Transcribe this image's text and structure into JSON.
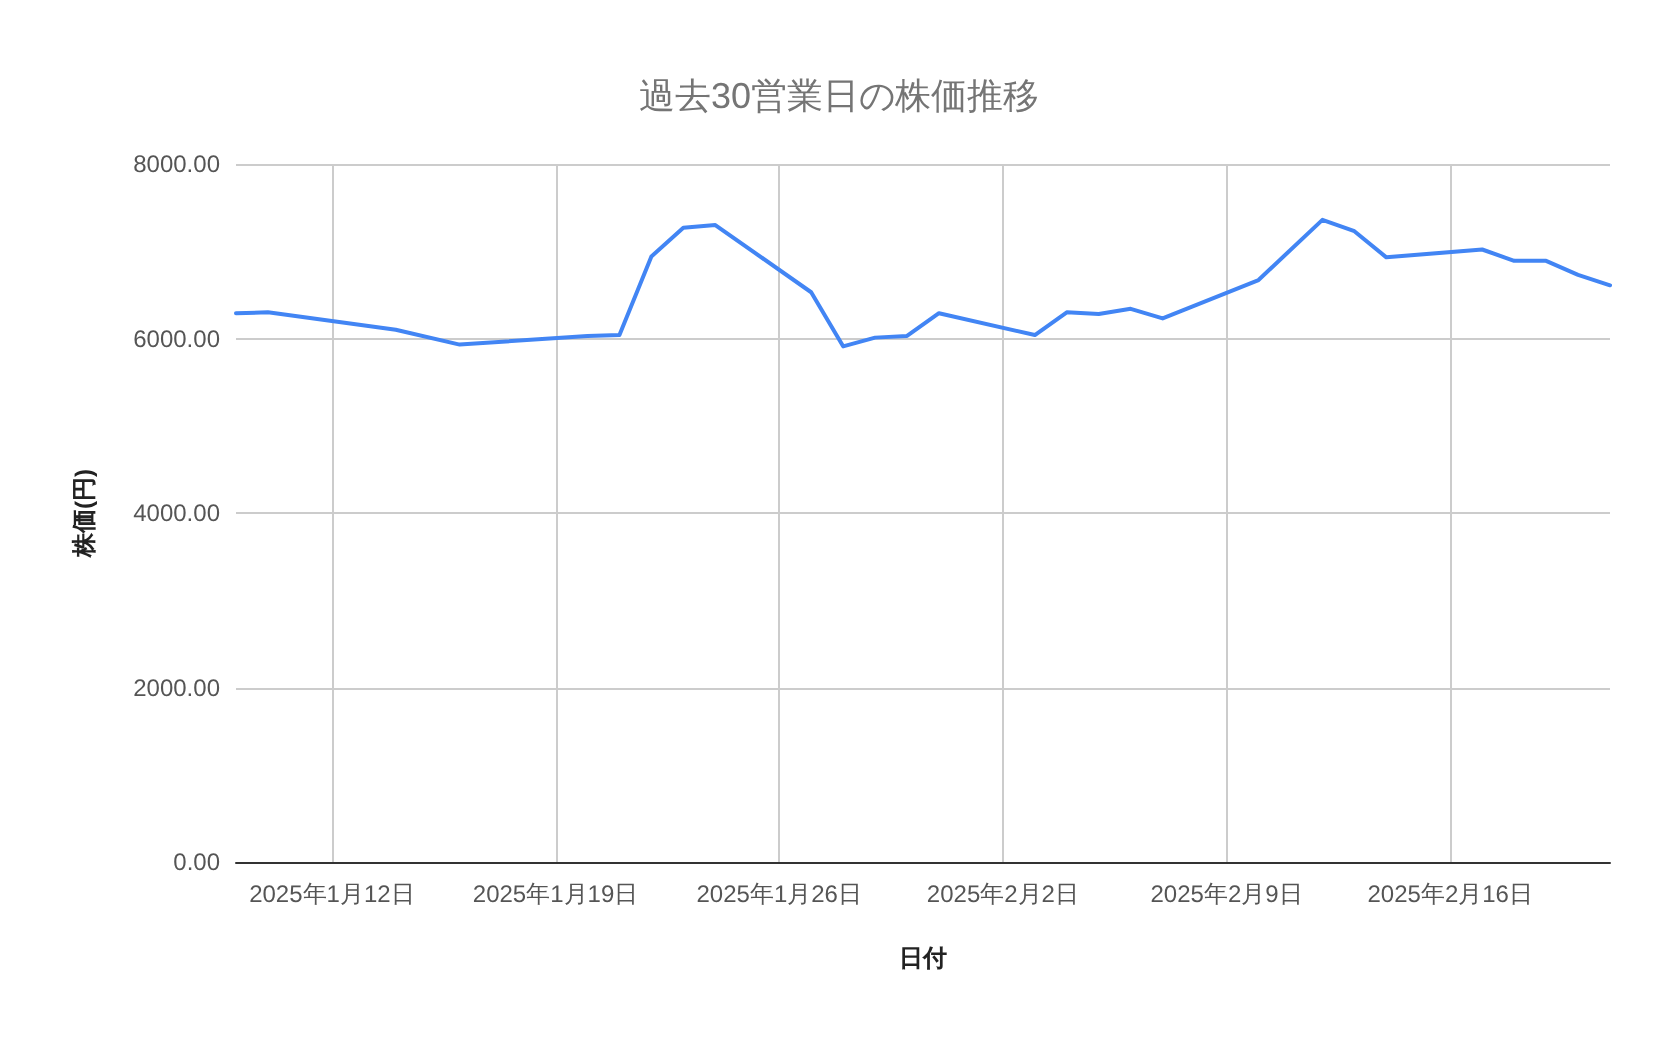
{
  "chart_data": {
    "type": "line",
    "title": "過去30営業日の株価推移",
    "xlabel": "日付",
    "ylabel": "株価(円)",
    "x": [
      "2025-01-09",
      "2025-01-10",
      "2025-01-14",
      "2025-01-16",
      "2025-01-20",
      "2025-01-21",
      "2025-01-22",
      "2025-01-23",
      "2025-01-24",
      "2025-01-27",
      "2025-01-28",
      "2025-01-29",
      "2025-01-30",
      "2025-01-31",
      "2025-02-03",
      "2025-02-04",
      "2025-02-05",
      "2025-02-06",
      "2025-02-07",
      "2025-02-10",
      "2025-02-12",
      "2025-02-13",
      "2025-02-14",
      "2025-02-17",
      "2025-02-18",
      "2025-02-19",
      "2025-02-20",
      "2025-02-21"
    ],
    "series": [
      {
        "color": "#4285f4",
        "values": [
          6290,
          6300,
          6100,
          5930,
          6030,
          6040,
          6940,
          7270,
          7300,
          6530,
          5910,
          6010,
          6030,
          6290,
          6040,
          6300,
          6280,
          6340,
          6230,
          6670,
          7360,
          7230,
          6930,
          7020,
          6890,
          6890,
          6730,
          6610
        ]
      }
    ],
    "xlim": [
      "2025-01-09",
      "2025-02-21"
    ],
    "xticks": [
      {
        "value": "2025-01-12",
        "label": "2025年1月12日"
      },
      {
        "value": "2025-01-19",
        "label": "2025年1月19日"
      },
      {
        "value": "2025-01-26",
        "label": "2025年1月26日"
      },
      {
        "value": "2025-02-02",
        "label": "2025年2月2日"
      },
      {
        "value": "2025-02-09",
        "label": "2025年2月9日"
      },
      {
        "value": "2025-02-16",
        "label": "2025年2月16日"
      }
    ],
    "ylim": [
      0,
      8000
    ],
    "yticks": [
      {
        "value": 0,
        "label": "0.00"
      },
      {
        "value": 2000,
        "label": "2000.00"
      },
      {
        "value": 4000,
        "label": "4000.00"
      },
      {
        "value": 6000,
        "label": "6000.00"
      },
      {
        "value": 8000,
        "label": "8000.00"
      }
    ],
    "grid": true,
    "marker": "none",
    "line_style": "solid"
  }
}
